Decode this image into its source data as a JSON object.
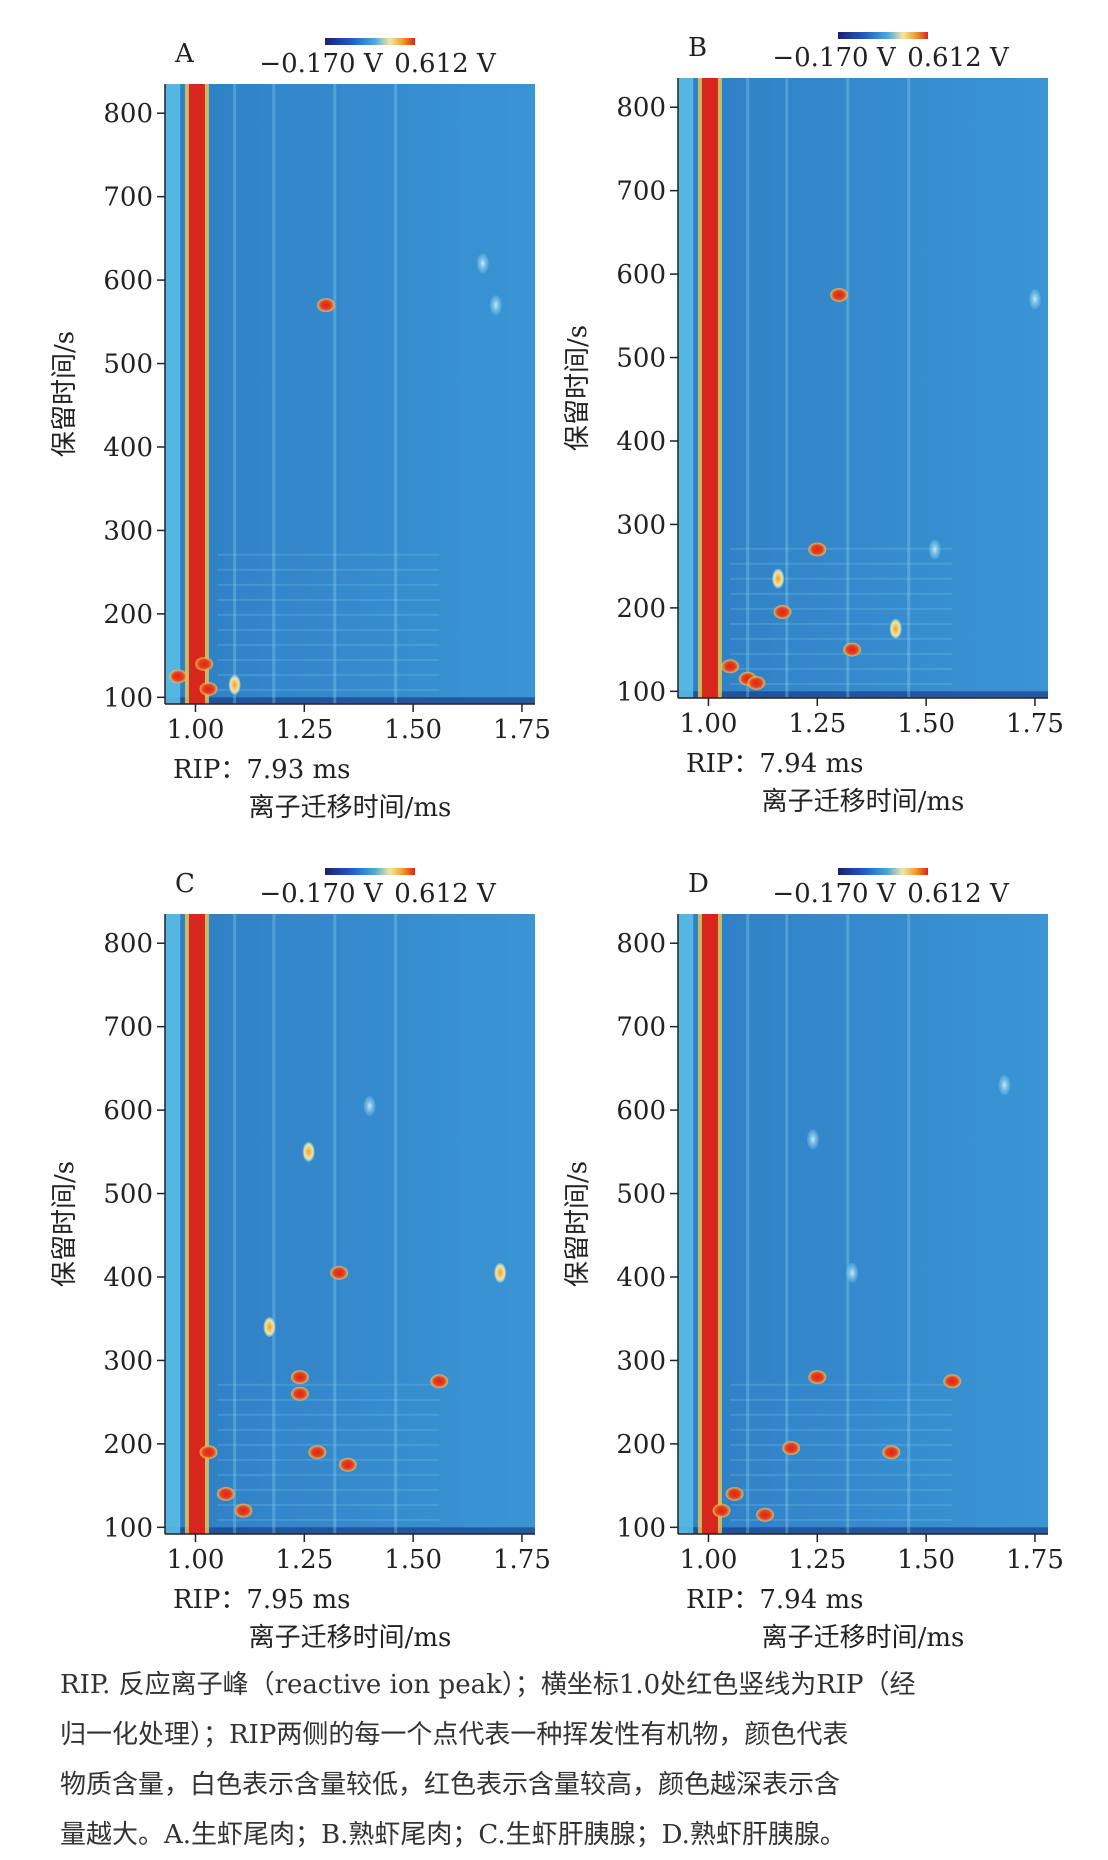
{
  "caption": {
    "lines": [
      "RIP. 反应离子峰（reactive ion peak）；横坐标1.0处红色竖线为RIP（经",
      "归一化处理）；RIP两侧的每一个点代表一种挥发性有机物，颜色代表",
      "物质含量，白色表示含量较低，红色表示含量较高，颜色越深表示含",
      "量越大。A.生虾尾肉；B.熟虾尾肉；C.生虾肝胰腺；D.熟虾肝胰腺。"
    ]
  },
  "colors": {
    "background": "#2e86c8",
    "rip": "#d7261c",
    "scale": [
      "#1a1f7a",
      "#1f5fc0",
      "#4aa8e0",
      "#f2e6a0",
      "#f0a030",
      "#d7261c"
    ]
  },
  "chart_data": [
    {
      "panel": "A",
      "type": "heatmap",
      "colorbar": {
        "min_label": "−0.170 V",
        "max_label": "0.612 V"
      },
      "rip_label": "RIP：7.93 ms",
      "xlabel": "离子迁移时间/ms",
      "ylabel": "保留时间/s",
      "xlim": [
        0.93,
        1.78
      ],
      "ylim": [
        92,
        835
      ],
      "xticks": [
        1.0,
        1.25,
        1.5,
        1.75
      ],
      "xtick_labels": [
        "1.00",
        "1.25",
        "1.50",
        "1.75"
      ],
      "yticks": [
        100,
        200,
        300,
        400,
        500,
        600,
        700,
        800
      ],
      "spots": [
        {
          "x": 1.3,
          "y": 570,
          "level": "high"
        },
        {
          "x": 0.96,
          "y": 125,
          "level": "high"
        },
        {
          "x": 1.02,
          "y": 140,
          "level": "high"
        },
        {
          "x": 1.03,
          "y": 110,
          "level": "high"
        },
        {
          "x": 1.09,
          "y": 115,
          "level": "medium"
        },
        {
          "x": 1.69,
          "y": 570,
          "level": "low"
        },
        {
          "x": 1.66,
          "y": 620,
          "level": "low"
        }
      ]
    },
    {
      "panel": "B",
      "type": "heatmap",
      "colorbar": {
        "min_label": "−0.170 V",
        "max_label": "0.612 V"
      },
      "rip_label": "RIP：7.94 ms",
      "xlabel": "离子迁移时间/ms",
      "ylabel": "保留时间/s",
      "xlim": [
        0.93,
        1.78
      ],
      "ylim": [
        92,
        835
      ],
      "xticks": [
        1.0,
        1.25,
        1.5,
        1.75
      ],
      "xtick_labels": [
        "1.00",
        "1.25",
        "1.50",
        "1.75"
      ],
      "yticks": [
        100,
        200,
        300,
        400,
        500,
        600,
        700,
        800
      ],
      "spots": [
        {
          "x": 1.3,
          "y": 575,
          "level": "high"
        },
        {
          "x": 1.25,
          "y": 270,
          "level": "high"
        },
        {
          "x": 1.17,
          "y": 195,
          "level": "high"
        },
        {
          "x": 1.33,
          "y": 150,
          "level": "high"
        },
        {
          "x": 1.09,
          "y": 115,
          "level": "high"
        },
        {
          "x": 1.11,
          "y": 110,
          "level": "high"
        },
        {
          "x": 1.05,
          "y": 130,
          "level": "high"
        },
        {
          "x": 1.43,
          "y": 175,
          "level": "medium"
        },
        {
          "x": 1.52,
          "y": 270,
          "level": "low"
        },
        {
          "x": 1.75,
          "y": 570,
          "level": "low"
        },
        {
          "x": 1.16,
          "y": 235,
          "level": "medium"
        }
      ]
    },
    {
      "panel": "C",
      "type": "heatmap",
      "colorbar": {
        "min_label": "−0.170 V",
        "max_label": "0.612 V"
      },
      "rip_label": "RIP：7.95 ms",
      "xlabel": "离子迁移时间/ms",
      "ylabel": "保留时间/s",
      "xlim": [
        0.93,
        1.78
      ],
      "ylim": [
        92,
        835
      ],
      "xticks": [
        1.0,
        1.25,
        1.5,
        1.75
      ],
      "xtick_labels": [
        "1.00",
        "1.25",
        "1.50",
        "1.75"
      ],
      "yticks": [
        100,
        200,
        300,
        400,
        500,
        600,
        700,
        800
      ],
      "spots": [
        {
          "x": 1.56,
          "y": 275,
          "level": "high"
        },
        {
          "x": 1.33,
          "y": 405,
          "level": "high"
        },
        {
          "x": 1.24,
          "y": 280,
          "level": "high"
        },
        {
          "x": 1.24,
          "y": 260,
          "level": "high"
        },
        {
          "x": 1.17,
          "y": 340,
          "level": "medium"
        },
        {
          "x": 1.28,
          "y": 190,
          "level": "high"
        },
        {
          "x": 1.35,
          "y": 175,
          "level": "high"
        },
        {
          "x": 1.11,
          "y": 120,
          "level": "high"
        },
        {
          "x": 1.07,
          "y": 140,
          "level": "high"
        },
        {
          "x": 1.03,
          "y": 190,
          "level": "high"
        },
        {
          "x": 1.26,
          "y": 550,
          "level": "medium"
        },
        {
          "x": 1.4,
          "y": 605,
          "level": "low"
        },
        {
          "x": 1.7,
          "y": 405,
          "level": "medium"
        }
      ]
    },
    {
      "panel": "D",
      "type": "heatmap",
      "colorbar": {
        "min_label": "−0.170 V",
        "max_label": "0.612 V"
      },
      "rip_label": "RIP：7.94 ms",
      "xlabel": "离子迁移时间/ms",
      "ylabel": "保留时间/s",
      "xlim": [
        0.93,
        1.78
      ],
      "ylim": [
        92,
        835
      ],
      "xticks": [
        1.0,
        1.25,
        1.5,
        1.75
      ],
      "xtick_labels": [
        "1.00",
        "1.25",
        "1.50",
        "1.75"
      ],
      "yticks": [
        100,
        200,
        300,
        400,
        500,
        600,
        700,
        800
      ],
      "spots": [
        {
          "x": 1.56,
          "y": 275,
          "level": "high"
        },
        {
          "x": 1.25,
          "y": 280,
          "level": "high"
        },
        {
          "x": 1.42,
          "y": 190,
          "level": "high"
        },
        {
          "x": 1.19,
          "y": 195,
          "level": "high"
        },
        {
          "x": 1.13,
          "y": 115,
          "level": "high"
        },
        {
          "x": 1.06,
          "y": 140,
          "level": "high"
        },
        {
          "x": 1.03,
          "y": 120,
          "level": "high"
        },
        {
          "x": 1.33,
          "y": 405,
          "level": "low"
        },
        {
          "x": 1.24,
          "y": 565,
          "level": "low"
        },
        {
          "x": 1.68,
          "y": 630,
          "level": "low"
        }
      ]
    }
  ]
}
